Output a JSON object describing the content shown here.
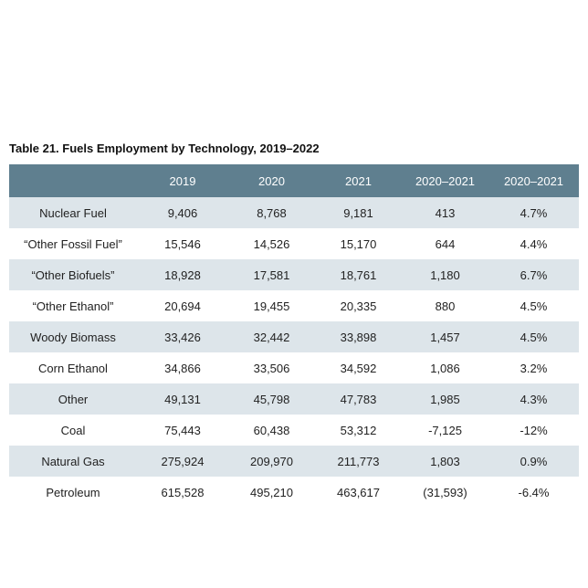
{
  "title": "Table 21. Fuels Employment by Technology, 2019–2022",
  "table": {
    "header": [
      "2019",
      "2020",
      "2021",
      "2020–2021",
      "2020–2021"
    ],
    "rows": [
      [
        "Nuclear Fuel",
        "9,406",
        "8,768",
        "9,181",
        "413",
        "4.7%"
      ],
      [
        "“Other Fossil Fuel”",
        "15,546",
        "14,526",
        "15,170",
        "644",
        "4.4%"
      ],
      [
        "“Other Biofuels”",
        "18,928",
        "17,581",
        "18,761",
        "1,180",
        "6.7%"
      ],
      [
        "“Other Ethanol”",
        "20,694",
        "19,455",
        "20,335",
        "880",
        "4.5%"
      ],
      [
        "Woody Biomass",
        "33,426",
        "32,442",
        "33,898",
        "1,457",
        "4.5%"
      ],
      [
        "Corn Ethanol",
        "34,866",
        "33,506",
        "34,592",
        "1,086",
        "3.2%"
      ],
      [
        "Other",
        "49,131",
        "45,798",
        "47,783",
        "1,985",
        "4.3%"
      ],
      [
        "Coal",
        "75,443",
        "60,438",
        "53,312",
        "-7,125",
        "-12%"
      ],
      [
        "Natural Gas",
        "275,924",
        "209,970",
        "211,773",
        "1,803",
        "0.9%"
      ],
      [
        "Petroleum",
        "615,528",
        "495,210",
        "463,617",
        "(31,593)",
        "-6.4%"
      ]
    ]
  }
}
